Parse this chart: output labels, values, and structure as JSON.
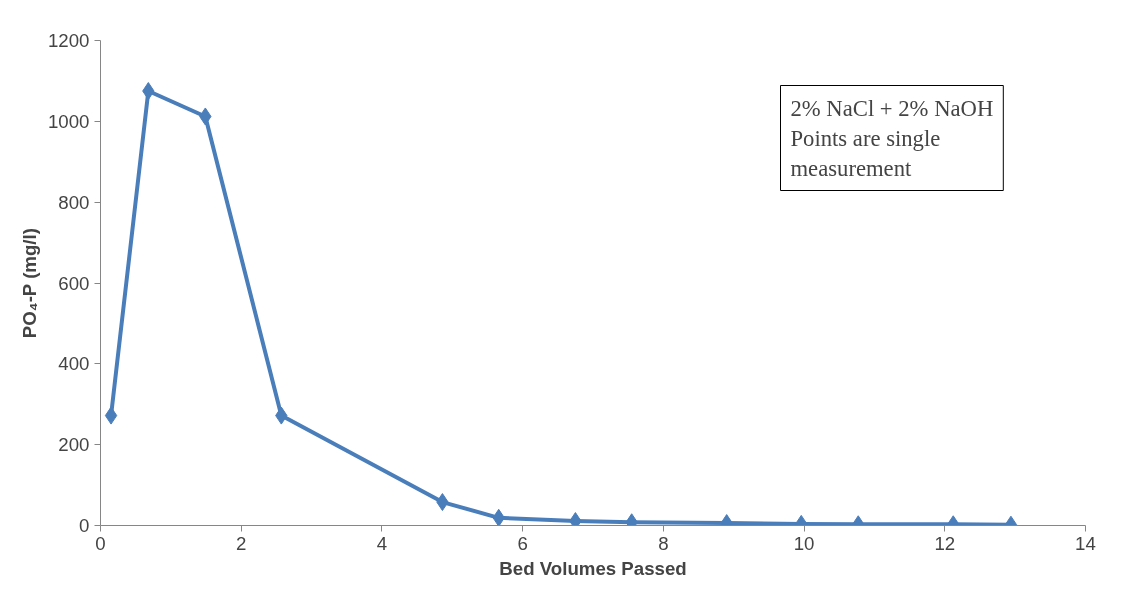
{
  "chart_data": {
    "type": "line",
    "xlabel": "Bed Volumes Passed",
    "ylabel": "PO₄-P (mg/l)",
    "x": [
      0.15,
      0.68,
      1.49,
      2.57,
      4.86,
      5.66,
      6.75,
      7.55,
      8.9,
      9.96,
      10.77,
      12.12,
      12.94
    ],
    "series": [
      {
        "color": "#4a7ebb",
        "values": [
          272,
          1075,
          1012,
          272,
          58,
          19,
          11,
          8,
          6,
          4,
          3,
          3,
          2
        ]
      }
    ],
    "xlim": [
      0,
      14
    ],
    "xticks": [
      0,
      2,
      4,
      6,
      8,
      10,
      12,
      14
    ],
    "ylim": [
      0,
      1200
    ],
    "yticks": [
      0,
      200,
      400,
      600,
      800,
      1000,
      1200
    ],
    "grid": false,
    "marker": "diamond",
    "line_style": "solid",
    "annotations": [
      "2% NaCl + 2% NaOH\nPoints are single\nmeasurement"
    ]
  }
}
